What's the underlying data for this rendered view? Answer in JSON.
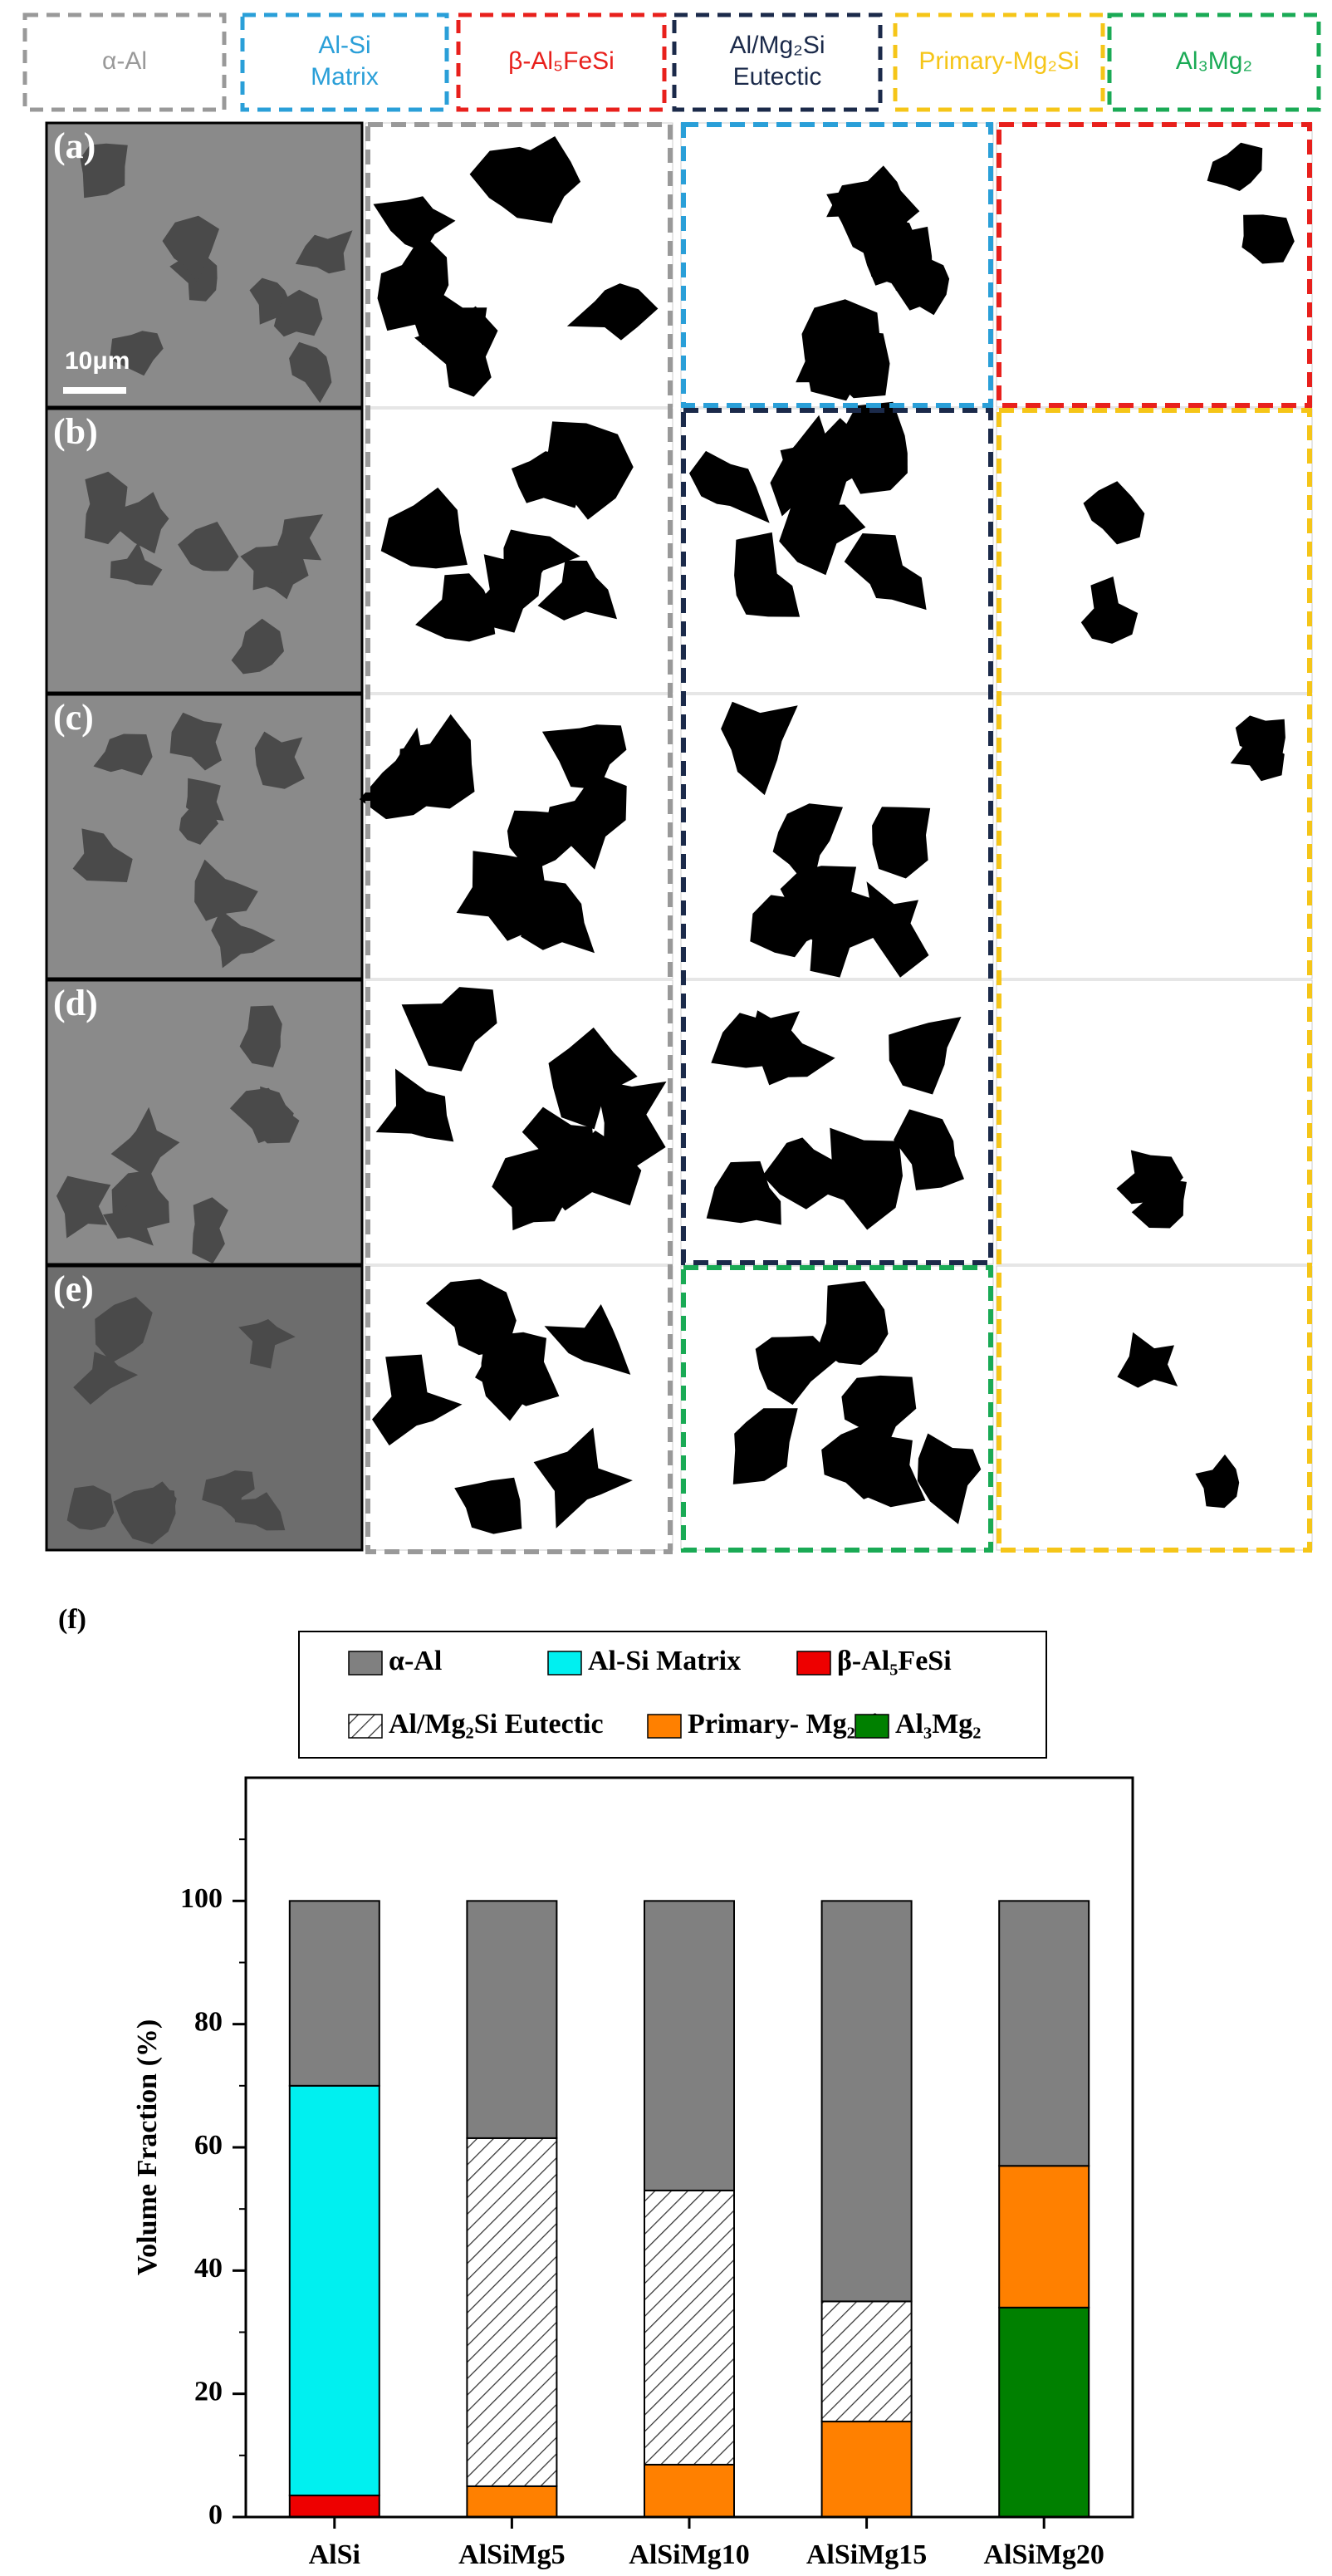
{
  "figure": {
    "phase_labels": [
      {
        "text": "α-Al",
        "color": "#999999"
      },
      {
        "text": "Al-Si Matrix",
        "color": "#2a9fd8"
      },
      {
        "text": "β-Al₅FeSi",
        "color": "#e8201c"
      },
      {
        "text": "Al/Mg₂Si Eutectic",
        "color": "#1b2a4a"
      },
      {
        "text": "Primary-Mg₂Si",
        "color": "#f5c518"
      },
      {
        "text": "Al₃Mg₂",
        "color": "#1aaa55"
      }
    ],
    "panels": [
      "(a)",
      "(b)",
      "(c)",
      "(d)",
      "(e)"
    ],
    "scale_bar": "10μm",
    "chart_label": "(f)"
  },
  "chart_data": {
    "type": "stacked_bar",
    "ylabel": "Volume Fraction (%)",
    "categories": [
      "AlSi",
      "AlSiMg5",
      "AlSiMg10",
      "AlSiMg15",
      "AlSiMg20"
    ],
    "series": [
      {
        "name": "α-Al",
        "color": "#808080",
        "values": [
          30,
          38.5,
          47,
          65,
          43
        ]
      },
      {
        "name": "Al-Si Matrix",
        "color": "#00f0f0",
        "values": [
          66.5,
          null,
          null,
          null,
          null
        ]
      },
      {
        "name": "β-Al₅FeSi",
        "color": "#ee0000",
        "values": [
          3.5,
          null,
          null,
          null,
          null
        ]
      },
      {
        "name": "Al/Mg₂Si Eutectic",
        "color": "#ffffff",
        "pattern": "hatch",
        "values": [
          null,
          56.5,
          44.5,
          19.5,
          null
        ]
      },
      {
        "name": "Primary- Mg₂Si",
        "color": "#ff8000",
        "values": [
          null,
          5,
          8.5,
          15.5,
          23
        ]
      },
      {
        "name": "Al₃Mg₂",
        "color": "#008000",
        "values": [
          null,
          null,
          null,
          null,
          34
        ]
      }
    ],
    "ylim": [
      0,
      120
    ],
    "yticks": [
      0,
      20,
      40,
      60,
      80,
      100
    ]
  }
}
